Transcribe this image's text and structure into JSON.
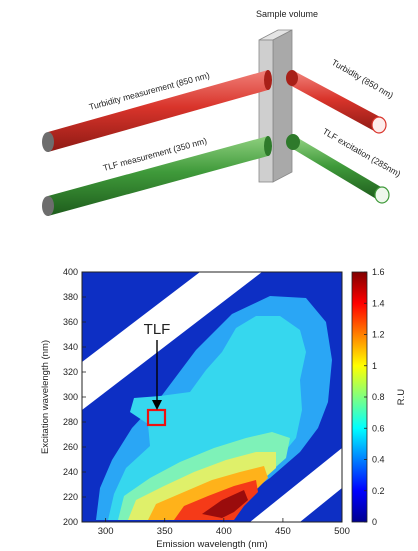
{
  "top_diagram": {
    "sample_label": "Sample volume",
    "turbidity_measurement": "Turbidity measurement (850 nm)",
    "tlf_measurement": "TLF measurement (350 nm)",
    "turbidity_source": "Turbidity (850 nm)",
    "tlf_excitation": "TLF excitation (285nm)",
    "colors": {
      "red_rod": "#d9342b",
      "green_rod": "#3f9a3a",
      "block": "#c8c8c8"
    }
  },
  "chart_data": {
    "type": "heatmap",
    "xlabel": "Emission wavelength (nm)",
    "ylabel": "Excitation wavelength (nm)",
    "colorbar_label": "R.U",
    "xlim": [
      280,
      500
    ],
    "ylim": [
      200,
      400
    ],
    "x_ticks": [
      "300",
      "350",
      "400",
      "450",
      "500"
    ],
    "y_ticks": [
      "200",
      "220",
      "240",
      "260",
      "280",
      "300",
      "320",
      "340",
      "360",
      "380",
      "400"
    ],
    "colorbar_ticks": [
      "0",
      "0.2",
      "0.4",
      "0.6",
      "0.8",
      "1",
      "1.2",
      "1.4",
      "1.6"
    ],
    "color_range": [
      0,
      1.6
    ],
    "annotation": {
      "text": "TLF",
      "x": 350,
      "y": 285
    },
    "grid": false
  }
}
